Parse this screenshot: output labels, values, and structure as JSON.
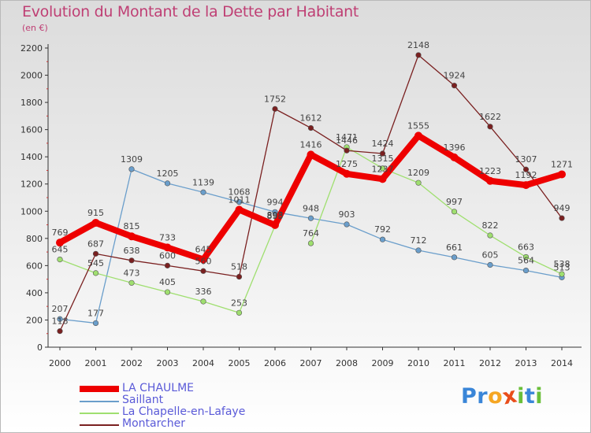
{
  "title": "Evolution du Montant de la Dette par Habitant",
  "unit": "(en €)",
  "chart_data": {
    "type": "line",
    "title": "Evolution du Montant de la Dette par Habitant",
    "subtitle": "(en €)",
    "x": [
      "2000",
      "2001",
      "2002",
      "2003",
      "2004",
      "2005",
      "2006",
      "2007",
      "2008",
      "2009",
      "2010",
      "2011",
      "2012",
      "2013",
      "2014"
    ],
    "y_ticks": [
      "0",
      "200",
      "400",
      "600",
      "800",
      "1000",
      "1200",
      "1400",
      "1600",
      "1800",
      "2000",
      "2200"
    ],
    "ylim": [
      0,
      2200
    ],
    "grid": false,
    "legend_position": "bottom-left",
    "series": [
      {
        "name": "LA CHAULME",
        "color": "#ee0000",
        "width": 8,
        "values": [
          769,
          915,
          815,
          733,
          645,
          1011,
          898,
          1416,
          1275,
          1237,
          1555,
          1396,
          1223,
          1192,
          1271
        ],
        "labels": [
          "769",
          "915",
          "815",
          "733",
          "645",
          "1011",
          "898",
          "1416",
          "1275",
          "1237",
          "1555",
          "1396",
          "1223",
          "1192",
          "1271"
        ]
      },
      {
        "name": "Saillant",
        "color": "#6a9ecb",
        "width": 1.3,
        "values": [
          207,
          177,
          1309,
          1205,
          1139,
          1068,
          994,
          948,
          903,
          792,
          712,
          661,
          605,
          564,
          513
        ],
        "labels": [
          "207",
          "177",
          "1309",
          "1205",
          "1139",
          "1068",
          "994",
          "948",
          "903",
          "792",
          "712",
          "661",
          "605",
          "564",
          "513"
        ]
      },
      {
        "name": "La Chapelle-en-Lafaye",
        "color": "#9fdf6f",
        "width": 1.3,
        "values": [
          645,
          545,
          473,
          405,
          336,
          253,
          893,
          764,
          1471,
          1315,
          1209,
          997,
          822,
          663,
          538
        ],
        "labels": [
          "645",
          "545",
          "473",
          "405",
          "336",
          "253",
          "893",
          "764",
          "1471",
          "1315",
          "1209",
          "997",
          "822",
          "663",
          "538"
        ],
        "breaks_after": [
          6
        ]
      },
      {
        "name": "Montarcher",
        "color": "#7a2020",
        "width": 1.3,
        "values": [
          118,
          687,
          638,
          600,
          560,
          518,
          1752,
          1612,
          1446,
          1424,
          2148,
          1924,
          1622,
          1307,
          949
        ],
        "labels": [
          "118",
          "687",
          "638",
          "600",
          "560",
          "518",
          "1752",
          "1612",
          "1446",
          "1424",
          "2148",
          "1924",
          "1622",
          "1307",
          "949"
        ]
      }
    ]
  },
  "logo": {
    "letters": [
      "P",
      "r",
      "o",
      "x",
      "i",
      "t",
      "i"
    ],
    "colors": [
      "#3a86d8",
      "#3a86d8",
      "#f5a623",
      "#e94e1b",
      "#6abf3a",
      "#3a86d8",
      "#6abf3a"
    ]
  }
}
